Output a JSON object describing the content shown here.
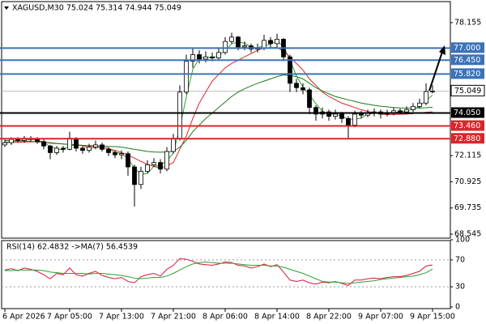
{
  "chart_data": [
    {
      "type": "candlestick",
      "title": "XAGUSD,M30  75.024 75.314 74.944 75.049",
      "categories": [
        "6 Apr 2026",
        null,
        null,
        null,
        null,
        null,
        null,
        null,
        null,
        null,
        "7 Apr 05:00",
        null,
        null,
        null,
        null,
        null,
        null,
        null,
        "7 Apr 13:00",
        null,
        null,
        null,
        null,
        null,
        null,
        null,
        "7 Apr 21:00",
        null,
        null,
        null,
        null,
        null,
        null,
        null,
        "8 Apr 06:00",
        null,
        null,
        null,
        null,
        null,
        null,
        null,
        "8 Apr 14:00",
        null,
        null,
        null,
        null,
        null,
        null,
        null,
        "8 Apr 22:00",
        null,
        null,
        null,
        null,
        null,
        null,
        null,
        "9 Apr 07:00",
        null,
        null,
        null,
        null,
        null,
        null,
        null,
        "9 Apr 15:00"
      ],
      "open": [
        72.6,
        72.7,
        72.85,
        72.8,
        72.9,
        72.85,
        72.75,
        72.55,
        72.25,
        72.45,
        72.4,
        72.9,
        72.45,
        72.35,
        72.5,
        72.6,
        72.4,
        72.25,
        72.15,
        72.2,
        71.6,
        70.8,
        71.4,
        71.7,
        71.8,
        71.5,
        72.3,
        72.9,
        75.0,
        76.4,
        76.7,
        76.5,
        76.6,
        76.55,
        76.8,
        77.3,
        77.5,
        77.05,
        77.1,
        76.95,
        77.0,
        77.35,
        77.2,
        77.4,
        76.6,
        75.4,
        75.2,
        75.1,
        74.3,
        74.0,
        74.1,
        73.9,
        74.0,
        73.8,
        73.5,
        74.0,
        73.95,
        74.05,
        74.1,
        74.0,
        74.05,
        74.15,
        74.1,
        74.2,
        74.35,
        74.5,
        75.024
      ],
      "high": [
        72.85,
        72.95,
        72.95,
        73.0,
        73.0,
        72.95,
        72.85,
        72.6,
        72.55,
        72.55,
        73.2,
        72.95,
        72.55,
        72.65,
        72.8,
        72.7,
        72.5,
        72.35,
        72.35,
        72.3,
        71.7,
        71.6,
        71.9,
        72.0,
        71.95,
        72.5,
        73.1,
        75.3,
        76.7,
        77.0,
        76.9,
        76.85,
        76.8,
        77.0,
        77.5,
        77.7,
        77.55,
        77.3,
        77.2,
        77.2,
        77.6,
        77.5,
        77.65,
        77.45,
        76.7,
        75.6,
        75.4,
        75.2,
        74.4,
        74.3,
        74.2,
        74.2,
        74.1,
        73.9,
        74.15,
        74.15,
        74.2,
        74.25,
        74.2,
        74.2,
        74.3,
        74.25,
        74.35,
        74.5,
        74.7,
        75.4,
        75.314
      ],
      "low": [
        72.5,
        72.6,
        72.7,
        72.7,
        72.75,
        72.65,
        72.4,
        71.95,
        72.15,
        72.25,
        72.35,
        72.3,
        72.2,
        72.25,
        72.4,
        72.3,
        72.1,
        72.0,
        71.95,
        71.2,
        69.8,
        70.6,
        71.3,
        71.6,
        71.3,
        71.4,
        72.2,
        72.8,
        74.9,
        76.1,
        76.3,
        76.35,
        76.4,
        76.45,
        76.7,
        77.2,
        76.9,
        76.9,
        76.8,
        76.8,
        76.9,
        77.0,
        77.05,
        76.4,
        75.0,
        75.0,
        74.9,
        74.0,
        73.7,
        73.8,
        73.7,
        73.75,
        73.6,
        72.9,
        73.4,
        73.8,
        73.85,
        73.9,
        73.8,
        73.9,
        73.95,
        74.0,
        74.0,
        74.1,
        74.25,
        74.4,
        74.944
      ],
      "close": [
        72.7,
        72.85,
        72.8,
        72.9,
        72.85,
        72.75,
        72.55,
        72.25,
        72.45,
        72.4,
        72.9,
        72.45,
        72.35,
        72.5,
        72.6,
        72.4,
        72.25,
        72.15,
        72.2,
        71.6,
        70.8,
        71.4,
        71.7,
        71.8,
        71.5,
        72.3,
        72.9,
        75.0,
        76.4,
        76.7,
        76.5,
        76.6,
        76.55,
        76.8,
        77.3,
        77.5,
        77.05,
        77.1,
        76.95,
        77.0,
        77.35,
        77.2,
        77.4,
        76.6,
        75.4,
        75.2,
        75.1,
        74.3,
        74.0,
        74.1,
        73.9,
        74.0,
        73.8,
        73.5,
        74.0,
        73.95,
        74.05,
        74.1,
        74.0,
        74.05,
        74.15,
        74.1,
        74.2,
        74.35,
        74.5,
        75.024,
        75.049
      ],
      "series": [
        {
          "color": "#2ca02c",
          "values": [
            72.72,
            72.75,
            72.78,
            72.83,
            72.85,
            72.83,
            72.72,
            72.52,
            72.42,
            72.37,
            72.58,
            72.58,
            72.57,
            72.43,
            72.48,
            72.5,
            72.42,
            72.27,
            72.2,
            71.98,
            71.53,
            71.27,
            71.3,
            71.63,
            71.67,
            71.87,
            72.23,
            73.4,
            74.77,
            76.03,
            76.53,
            76.6,
            76.55,
            76.65,
            76.88,
            77.2,
            77.28,
            77.22,
            77.03,
            77.02,
            77.1,
            77.18,
            77.32,
            77.07,
            76.47,
            75.73,
            75.23,
            74.87,
            74.47,
            74.13,
            74.0,
            74.0,
            73.9,
            73.77,
            73.77,
            73.82,
            74.0,
            74.03,
            74.05,
            74.05,
            74.07,
            74.1,
            74.15,
            74.22,
            74.35,
            74.62,
            74.86
          ]
        },
        {
          "color": "#e0242a",
          "values": [
            72.7,
            72.71,
            72.72,
            72.73,
            72.74,
            72.74,
            72.72,
            72.68,
            72.66,
            72.64,
            72.62,
            72.6,
            72.57,
            72.55,
            72.52,
            72.48,
            72.44,
            72.35,
            72.25,
            72.15,
            72.0,
            71.85,
            71.72,
            71.62,
            71.55,
            71.65,
            71.8,
            72.4,
            73.0,
            73.8,
            74.5,
            75.0,
            75.5,
            75.8,
            76.1,
            76.3,
            76.45,
            76.6,
            76.75,
            76.9,
            77.0,
            77.02,
            77.03,
            76.85,
            76.6,
            76.3,
            76.0,
            75.6,
            75.3,
            75.0,
            74.8,
            74.65,
            74.5,
            74.4,
            74.3,
            74.2,
            74.12,
            74.06,
            74.0,
            73.98,
            73.98,
            73.99,
            74.0,
            74.02,
            74.05,
            74.08,
            74.1
          ]
        },
        {
          "color": "#1a7a1a",
          "values": [
            72.8,
            72.79,
            72.78,
            72.77,
            72.76,
            72.74,
            72.72,
            72.7,
            72.67,
            72.64,
            72.62,
            72.6,
            72.58,
            72.57,
            72.56,
            72.55,
            72.53,
            72.52,
            72.5,
            72.45,
            72.4,
            72.35,
            72.3,
            72.28,
            72.27,
            72.28,
            72.3,
            72.5,
            72.8,
            73.2,
            73.5,
            73.8,
            74.05,
            74.3,
            74.55,
            74.8,
            75.0,
            75.15,
            75.28,
            75.4,
            75.5,
            75.6,
            75.7,
            75.78,
            75.75,
            75.7,
            75.6,
            75.4,
            75.2,
            75.05,
            74.92,
            74.8,
            74.72,
            74.65,
            74.58,
            74.5,
            74.45,
            74.4,
            74.36,
            74.33,
            74.3,
            74.28,
            74.27,
            74.27,
            74.28,
            74.29,
            74.31
          ]
        }
      ],
      "levels": [
        {
          "value": 77,
          "label": "77.000",
          "color": "#3b73b9"
        },
        {
          "value": 76.45,
          "label": "76.450",
          "color": "#3b73b9"
        },
        {
          "value": 75.82,
          "label": "75.820",
          "color": "#3b73b9"
        },
        {
          "value": 74.05,
          "label": "74.050",
          "color": "#000000"
        },
        {
          "value": 73.46,
          "label": "73.460",
          "color": "#d9262b"
        },
        {
          "value": 72.88,
          "label": "72.880",
          "color": "#d9262b"
        }
      ],
      "current_price": 75.049,
      "ylim": [
        68.4,
        79.0
      ],
      "yticks": [
        78.155,
        72.115,
        70.925,
        69.735,
        68.545
      ]
    },
    {
      "type": "line",
      "title": "RSI(14) 62.4832  ->MA(7) 56.4539",
      "series": [
        {
          "color": "#dc143c",
          "values": [
            55,
            57,
            54,
            58,
            56,
            53,
            48,
            42,
            50,
            48,
            58,
            48,
            46,
            50,
            53,
            47,
            44,
            42,
            44,
            38,
            36,
            45,
            48,
            50,
            46,
            56,
            62,
            72,
            71,
            68,
            64,
            63,
            62,
            64,
            67,
            66,
            62,
            61,
            58,
            60,
            64,
            60,
            63,
            52,
            40,
            38,
            40,
            36,
            34,
            37,
            36,
            38,
            35,
            32,
            40,
            40,
            42,
            43,
            42,
            44,
            45,
            45,
            47,
            50,
            53,
            61,
            62.4832
          ]
        },
        {
          "color": "#2ca02c",
          "values": [
            54,
            54,
            55,
            55,
            55,
            55,
            54,
            52,
            51,
            50,
            50,
            50,
            50,
            49,
            50,
            50,
            49,
            48,
            47,
            45,
            43,
            42,
            43,
            44,
            44,
            46,
            50,
            55,
            60,
            64,
            66,
            67,
            66,
            65,
            65,
            65,
            64,
            63,
            62,
            62,
            62,
            61,
            61,
            59,
            56,
            53,
            50,
            46,
            42,
            38,
            37,
            37,
            36,
            35,
            36,
            37,
            38,
            39,
            41,
            42,
            43,
            44,
            45,
            46,
            48,
            51,
            56.4539
          ]
        }
      ],
      "ylim": [
        0,
        100
      ],
      "yticks": [
        100,
        70,
        30,
        0
      ],
      "grid_dotted": true
    }
  ]
}
